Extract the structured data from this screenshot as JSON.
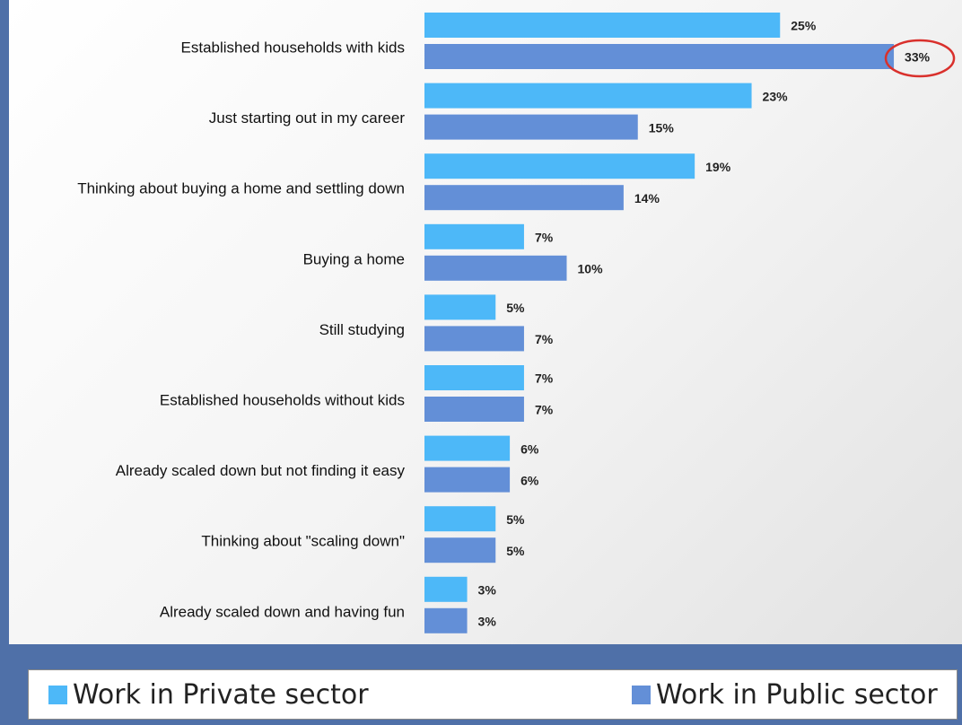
{
  "colors": {
    "private": "#4db8f8",
    "public": "#638fd7",
    "highlight_circle": "#d9302c",
    "background": "#4f70a8"
  },
  "legend": {
    "items": [
      {
        "label": "Work in Private sector",
        "color": "#4db8f8"
      },
      {
        "label": "Work in Public sector",
        "color": "#638fd7"
      }
    ]
  },
  "chart_data": {
    "type": "bar",
    "orientation": "horizontal",
    "categories": [
      "Established households with kids",
      "Just starting out in my career",
      "Thinking about buying a home and settling down",
      "Buying a home",
      "Still studying",
      "Established households without kids",
      "Already scaled down but not finding it easy",
      "Thinking about \"scaling down\"",
      "Already scaled down and having fun"
    ],
    "series": [
      {
        "name": "Work in Private sector",
        "values": [
          25,
          23,
          19,
          7,
          5,
          7,
          6,
          5,
          3
        ],
        "labels": [
          "25%",
          "23%",
          "19%",
          "7%",
          "5%",
          "7%",
          "6%",
          "5%",
          "3%"
        ]
      },
      {
        "name": "Work in Public sector",
        "values": [
          33,
          15,
          14,
          10,
          7,
          7,
          6,
          5,
          3
        ],
        "labels": [
          "33%",
          "15%",
          "14%",
          "10%",
          "7%",
          "7%",
          "6%",
          "5%",
          "3%"
        ]
      }
    ],
    "highlight": {
      "series": "Work in Public sector",
      "category": "Established households with kids",
      "style": "red circle around data label"
    },
    "xlim": [
      0,
      33
    ],
    "grid": false,
    "legend_position": "bottom"
  }
}
